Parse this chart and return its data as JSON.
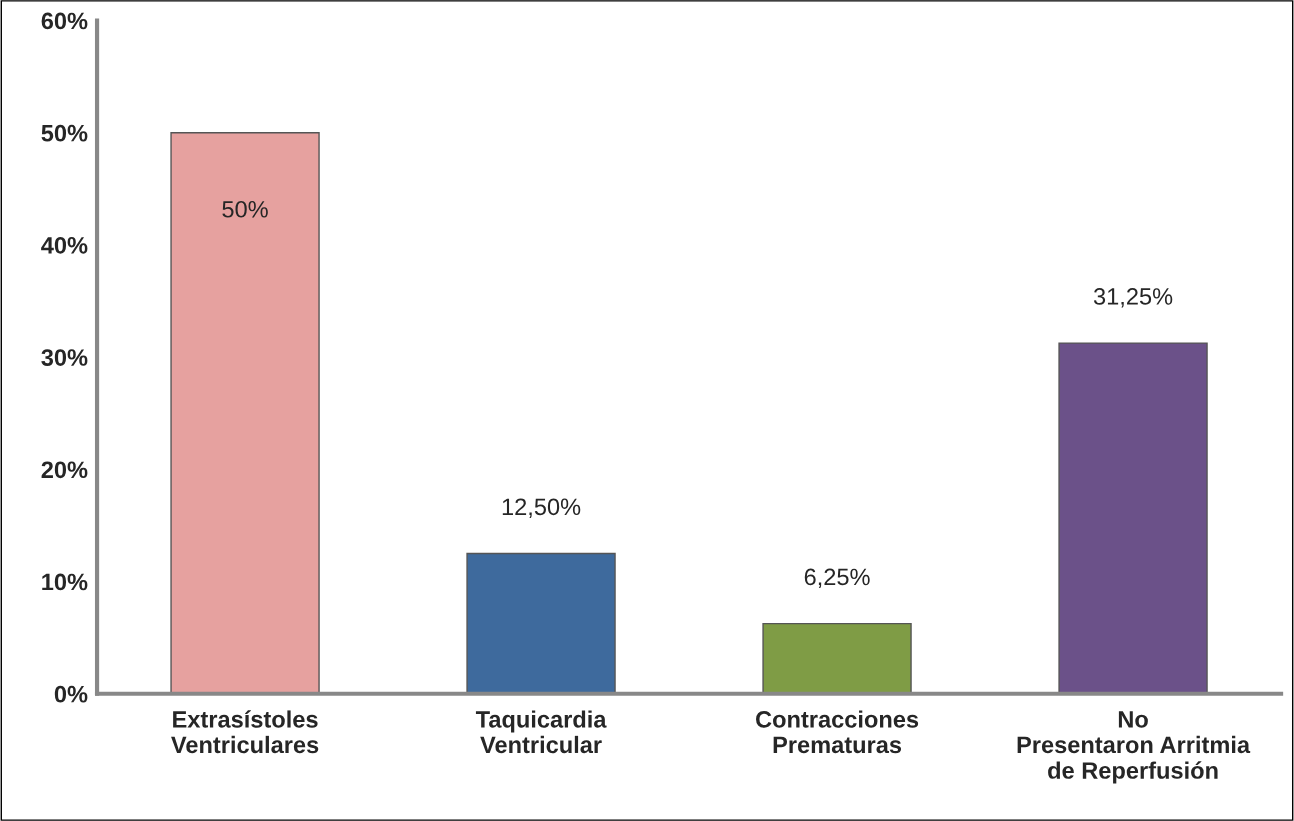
{
  "chart_data": {
    "type": "bar",
    "categories": [
      "Extrasístoles\nVentriculares",
      "Taquicardia\nVentricular",
      "Contracciones\nPrematuras",
      "No\nPresentaron Arritmia\nde Reperfusión"
    ],
    "values": [
      50,
      12.5,
      6.25,
      31.25
    ],
    "colors": [
      "#e6a19f",
      "#3e6a9d",
      "#7f9c45",
      "#6b5189"
    ],
    "value_labels": [
      "50%",
      "12,50%",
      "6,25%",
      "31,25%"
    ],
    "ylim": [
      0,
      60
    ],
    "yticks": [
      {
        "value": 0,
        "label": "0%"
      },
      {
        "value": 10,
        "label": "10%"
      },
      {
        "value": 20,
        "label": "20%"
      },
      {
        "value": 30,
        "label": "30%"
      },
      {
        "value": 40,
        "label": "40%"
      },
      {
        "value": 50,
        "label": "50%"
      },
      {
        "value": 60,
        "label": "60%"
      }
    ],
    "grid": false,
    "legend": false
  }
}
